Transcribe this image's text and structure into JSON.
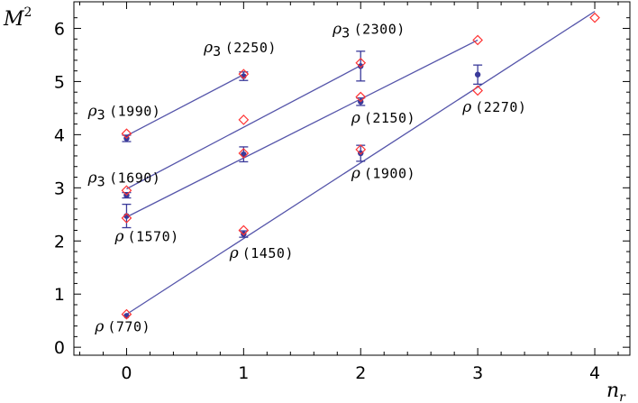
{
  "chart_data": {
    "type": "scatter",
    "title": "",
    "xlabel_main": "n",
    "xlabel_sub": "r",
    "ylabel_main": "M",
    "ylabel_sup": "2",
    "xlim": [
      -0.45,
      4.3
    ],
    "ylim": [
      -0.15,
      6.5
    ],
    "xticks": [
      "0",
      "1",
      "2",
      "3",
      "4"
    ],
    "yticks": [
      "0",
      "1",
      "2",
      "3",
      "4",
      "5",
      "6"
    ],
    "grid": false,
    "marker_colors": {
      "experimental": "#3a3a9a",
      "theory": "#ff3333",
      "line": "#5555aa"
    },
    "trajectories": [
      {
        "from": [
          0,
          0.62
        ],
        "to": [
          4,
          6.32
        ]
      },
      {
        "from": [
          0,
          2.45
        ],
        "to": [
          3,
          5.78
        ]
      },
      {
        "from": [
          0,
          2.98
        ],
        "to": [
          2,
          5.3
        ]
      },
      {
        "from": [
          0,
          3.98
        ],
        "to": [
          1,
          5.13
        ]
      }
    ],
    "experimental": [
      {
        "x": 0,
        "y": 0.59,
        "err": 0.02
      },
      {
        "x": 1,
        "y": 2.13,
        "err": 0.06
      },
      {
        "x": 2,
        "y": 3.65,
        "err": 0.15
      },
      {
        "x": 3,
        "y": 5.13,
        "err": 0.18
      },
      {
        "x": 0,
        "y": 2.47,
        "err": 0.22
      },
      {
        "x": 1,
        "y": 3.63,
        "err": 0.14
      },
      {
        "x": 2,
        "y": 4.62,
        "err": 0.07
      },
      {
        "x": 0,
        "y": 2.86,
        "err": 0.05
      },
      {
        "x": 2,
        "y": 5.29,
        "err": 0.28
      },
      {
        "x": 0,
        "y": 3.93,
        "err": 0.06
      },
      {
        "x": 1,
        "y": 5.1,
        "err": 0.08
      }
    ],
    "theory": [
      {
        "x": 0,
        "y": 0.62
      },
      {
        "x": 1,
        "y": 2.2
      },
      {
        "x": 2,
        "y": 3.72
      },
      {
        "x": 3,
        "y": 4.83
      },
      {
        "x": 4,
        "y": 6.2
      },
      {
        "x": 0,
        "y": 2.43
      },
      {
        "x": 1,
        "y": 3.65
      },
      {
        "x": 2,
        "y": 4.71
      },
      {
        "x": 3,
        "y": 5.78
      },
      {
        "x": 0,
        "y": 2.95
      },
      {
        "x": 1,
        "y": 4.28
      },
      {
        "x": 2,
        "y": 5.35
      },
      {
        "x": 0,
        "y": 4.02
      },
      {
        "x": 1,
        "y": 5.14
      }
    ],
    "annotations": [
      {
        "symbol": "ρ",
        "sub": "",
        "mass": "(770)",
        "x": -0.27,
        "y": 0.3
      },
      {
        "symbol": "ρ",
        "sub": "",
        "mass": "(1450)",
        "x": 0.88,
        "y": 1.68
      },
      {
        "symbol": "ρ",
        "sub": "",
        "mass": "(1900)",
        "x": 1.92,
        "y": 3.18
      },
      {
        "symbol": "ρ",
        "sub": "",
        "mass": "(2270)",
        "x": 2.87,
        "y": 4.43
      },
      {
        "symbol": "ρ",
        "sub": "",
        "mass": "(1570)",
        "x": -0.1,
        "y": 2.0
      },
      {
        "symbol": "ρ",
        "sub": "",
        "mass": "(2150)",
        "x": 1.92,
        "y": 4.23
      },
      {
        "symbol": "ρ",
        "sub": "3",
        "mass": "(1690)",
        "x": -0.33,
        "y": 3.1
      },
      {
        "symbol": "ρ",
        "sub": "3",
        "mass": "(1990)",
        "x": -0.33,
        "y": 4.35
      },
      {
        "symbol": "ρ",
        "sub": "3",
        "mass": "(2250)",
        "x": 0.66,
        "y": 5.55
      },
      {
        "symbol": "ρ",
        "sub": "3",
        "mass": "(2300)",
        "x": 1.76,
        "y": 5.9
      }
    ]
  }
}
